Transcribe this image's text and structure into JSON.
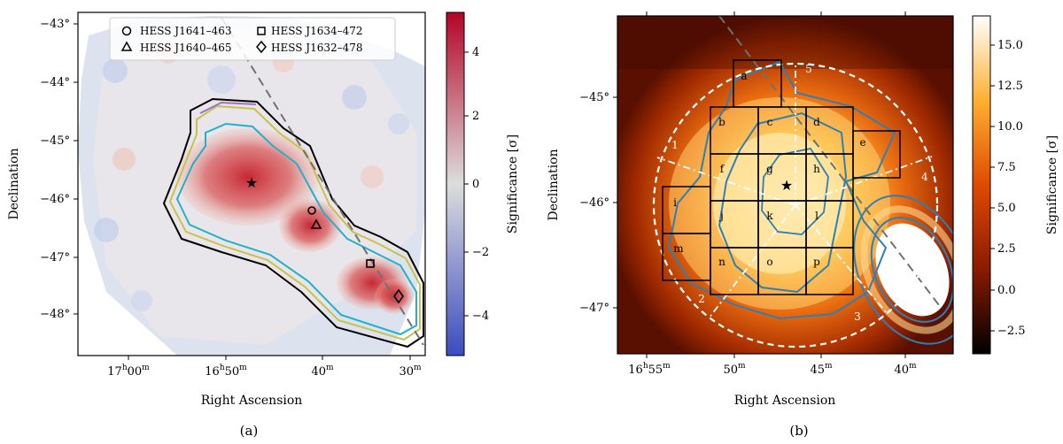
{
  "chart_data": [
    {
      "type": "heatmap",
      "panel_label": "(a)",
      "xlabel": "Right Ascension",
      "ylabel": "Declination",
      "x_ticks": [
        {
          "main": "17",
          "sup1": "h",
          "min": "00",
          "sup2": "m"
        },
        {
          "main": "16",
          "sup1": "h",
          "min": "50",
          "sup2": "m"
        },
        {
          "main": "40",
          "sup1": "m",
          "min": "",
          "sup2": ""
        },
        {
          "main": "30",
          "sup1": "m",
          "min": "",
          "sup2": ""
        }
      ],
      "y_ticks": [
        "−43°",
        "−44°",
        "−45°",
        "−46°",
        "−47°",
        "−48°"
      ],
      "colorbar": {
        "label": "Significance [σ]",
        "range": [
          -5,
          5
        ],
        "ticks": [
          "4",
          "2",
          "0",
          "−2",
          "−4"
        ],
        "colormap": [
          "#3a4cc0",
          "#dddddd",
          "#b40426"
        ]
      },
      "legend": [
        {
          "marker": "circle",
          "label": "HESS J1641–463"
        },
        {
          "marker": "triangle",
          "label": "HESS J1640–465"
        },
        {
          "marker": "square",
          "label": "HESS J1634–472"
        },
        {
          "marker": "diamond",
          "label": "HESS J1632–478"
        }
      ],
      "sources": [
        {
          "name": "HESS J1641–463",
          "ra_min": 40.7,
          "dec": -46.25
        },
        {
          "name": "HESS J1640–465",
          "ra_min": 40.0,
          "dec": -46.5
        },
        {
          "name": "HESS J1634–472",
          "ra_min": 35.0,
          "dec": -47.2
        },
        {
          "name": "HESS J1632–478",
          "ra_min": 31.5,
          "dec": -47.75
        },
        {
          "name": "star",
          "ra_min": 47.5,
          "dec": -45.8
        }
      ],
      "contour_colors": {
        "outer": "#000000",
        "mid1": "#c8c24a",
        "mid2": "#a070c0",
        "inner": "#23b0c8"
      }
    },
    {
      "type": "heatmap",
      "panel_label": "(b)",
      "xlabel": "Right Ascension",
      "ylabel": "Declination",
      "x_ticks": [
        {
          "main": "16",
          "sup1": "h",
          "min": "55",
          "sup2": "m"
        },
        {
          "main": "50",
          "sup1": "m",
          "min": "",
          "sup2": ""
        },
        {
          "main": "45",
          "sup1": "m",
          "min": "",
          "sup2": ""
        },
        {
          "main": "40",
          "sup1": "m",
          "min": "",
          "sup2": ""
        }
      ],
      "y_ticks": [
        "−45°",
        "−46°",
        "−47°"
      ],
      "colorbar": {
        "label": "Significance [σ]",
        "range": [
          -3.8,
          17
        ],
        "ticks": [
          "15.0",
          "12.5",
          "10.0",
          "7.5",
          "5.0",
          "2.5",
          "0.0",
          "−2.5"
        ],
        "colormap": [
          "#000000",
          "#8a1a00",
          "#e04a00",
          "#ffb030",
          "#ffffff"
        ]
      },
      "regions": [
        "a",
        "b",
        "c",
        "d",
        "e",
        "f",
        "g",
        "h",
        "i",
        "j",
        "k",
        "l",
        "m",
        "n",
        "o",
        "p"
      ],
      "segments": [
        "1",
        "2",
        "3",
        "4",
        "5"
      ],
      "contour_color": "#2f7fb5"
    }
  ]
}
